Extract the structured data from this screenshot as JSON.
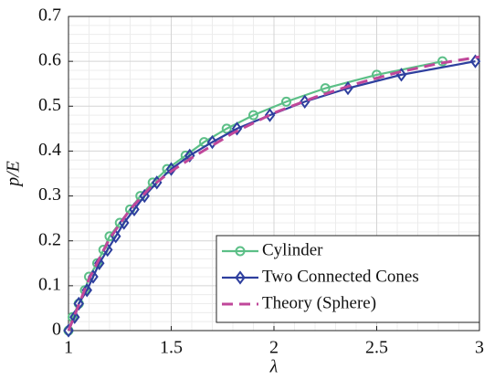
{
  "chart_data": {
    "type": "line",
    "x_label": "λ",
    "y_label": "p/E",
    "xlim": [
      1,
      3
    ],
    "xticks": [
      1,
      1.5,
      2,
      2.5,
      3
    ],
    "ylim": [
      0,
      0.7
    ],
    "yticks": [
      0,
      0.1,
      0.2,
      0.3,
      0.4,
      0.5,
      0.6,
      0.7
    ],
    "grid": true,
    "minor_grid": true,
    "legend_position": "lower right",
    "series": [
      {
        "name": "Cylinder",
        "color": "#5cbf87",
        "marker": "circle",
        "line": "solid",
        "x": [
          1,
          1.02,
          1.05,
          1.08,
          1.1,
          1.14,
          1.17,
          1.2,
          1.25,
          1.3,
          1.35,
          1.41,
          1.48,
          1.57,
          1.66,
          1.77,
          1.9,
          2.06,
          2.25,
          2.5,
          2.82
        ],
        "values": [
          0,
          0.03,
          0.06,
          0.09,
          0.12,
          0.15,
          0.18,
          0.21,
          0.24,
          0.27,
          0.3,
          0.33,
          0.36,
          0.39,
          0.42,
          0.45,
          0.48,
          0.51,
          0.54,
          0.57,
          0.6
        ]
      },
      {
        "name": "Two Connected Cones",
        "color": "#2e3f9e",
        "marker": "diamond",
        "line": "solid",
        "x": [
          1,
          1.03,
          1.05,
          1.09,
          1.12,
          1.15,
          1.19,
          1.23,
          1.27,
          1.32,
          1.37,
          1.43,
          1.5,
          1.59,
          1.7,
          1.82,
          1.98,
          2.15,
          2.36,
          2.62,
          2.98
        ],
        "values": [
          0,
          0.03,
          0.06,
          0.09,
          0.12,
          0.15,
          0.18,
          0.21,
          0.24,
          0.27,
          0.3,
          0.33,
          0.36,
          0.39,
          0.42,
          0.45,
          0.48,
          0.51,
          0.54,
          0.57,
          0.6
        ]
      },
      {
        "name": "Theory (Sphere)",
        "color": "#c0479a",
        "marker": "none",
        "line": "dashed",
        "x": [
          1,
          1.1,
          1.2,
          1.3,
          1.4,
          1.5,
          1.6,
          1.8,
          2,
          2.2,
          2.4,
          2.6,
          2.8,
          3
        ],
        "values": [
          0,
          0.115,
          0.205,
          0.27,
          0.32,
          0.355,
          0.385,
          0.44,
          0.485,
          0.52,
          0.55,
          0.575,
          0.595,
          0.61
        ]
      }
    ]
  }
}
